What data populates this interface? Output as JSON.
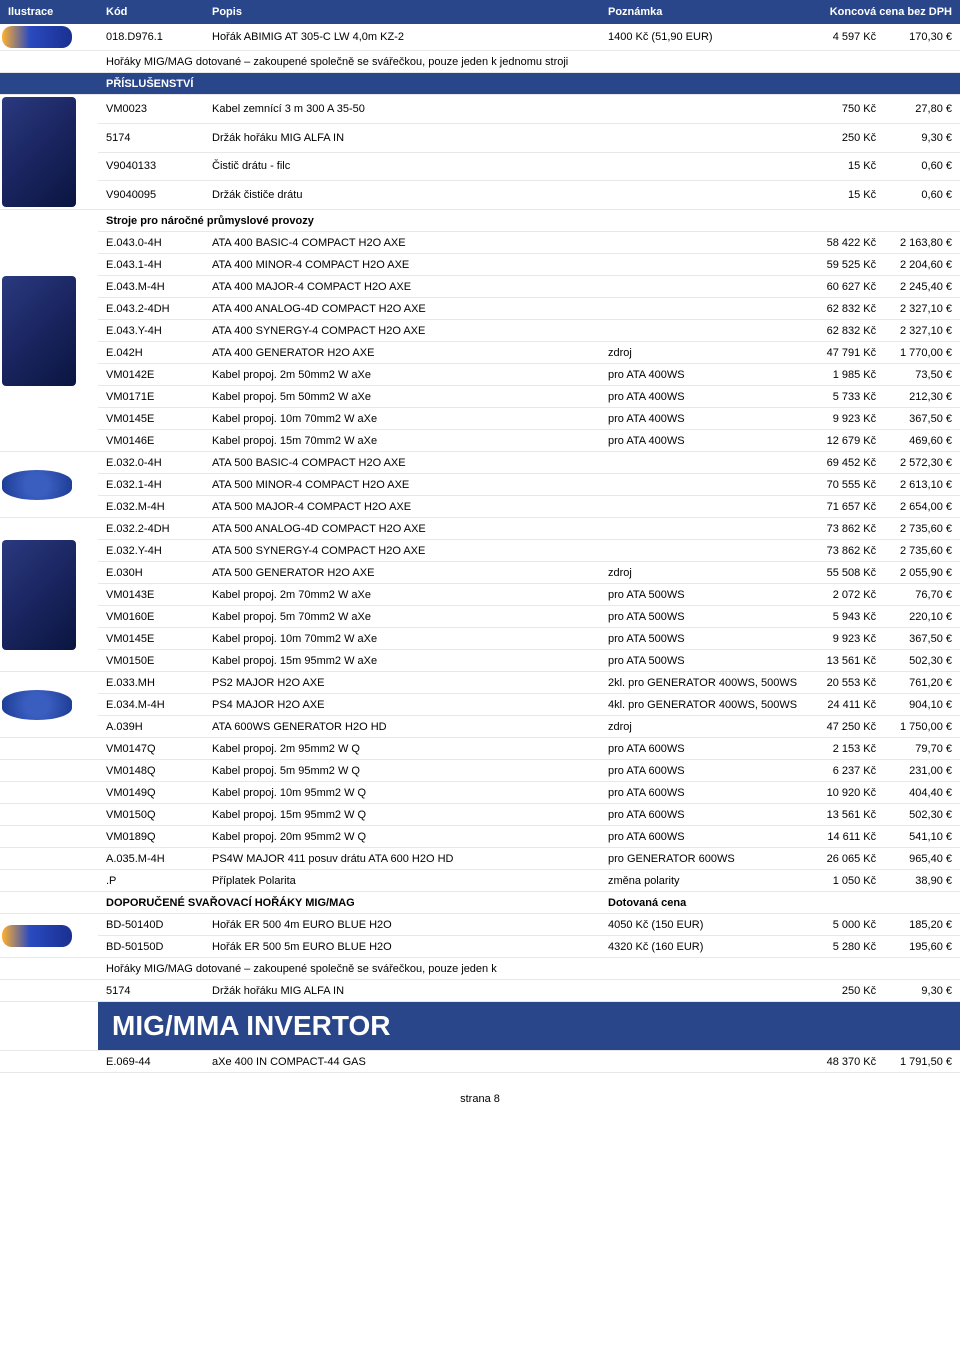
{
  "header": {
    "illus": "Ilustrace",
    "code": "Kód",
    "desc": "Popis",
    "note": "Poznámka",
    "price": "Koncová cena bez DPH"
  },
  "rows": [
    {
      "illus": "torch",
      "code": "018.D976.1",
      "desc": "Hořák ABIMIG AT 305-C LW 4,0m KZ-2",
      "note": "1400 Kč (51,90 EUR)",
      "kc": "4 597 Kč",
      "eur": "170,30 €"
    },
    {
      "type": "wide",
      "desc": "Hořáky MIG/MAG dotované – zakoupené společně se svářečkou, pouze jeden k jednomu stroji"
    },
    {
      "type": "darkheader",
      "desc": "PŘÍSLUŠENSTVÍ"
    },
    {
      "illus": "machine",
      "illusRowspan": 4,
      "code": "VM0023",
      "desc": "Kabel zemnící 3 m 300 A 35-50",
      "note": "",
      "kc": "750 Kč",
      "eur": "27,80 €"
    },
    {
      "code": "5174",
      "desc": "Držák hořáku MIG ALFA IN",
      "note": "",
      "kc": "250 Kč",
      "eur": "9,30 €"
    },
    {
      "code": "V9040133",
      "desc": "Čistič drátu - filc",
      "note": "",
      "kc": "15 Kč",
      "eur": "0,60 €"
    },
    {
      "code": "V9040095",
      "desc": "Držák čističe drátu",
      "note": "",
      "kc": "15 Kč",
      "eur": "0,60 €"
    },
    {
      "type": "boldheader",
      "illus": "machine",
      "illusRowspan": 11,
      "desc": "Stroje pro náročné průmyslové provozy"
    },
    {
      "code": "E.043.0-4H",
      "desc": "ATA 400 BASIC-4 COMPACT H2O AXE",
      "note": "",
      "kc": "58 422 Kč",
      "eur": "2 163,80 €"
    },
    {
      "code": "E.043.1-4H",
      "desc": "ATA 400 MINOR-4 COMPACT H2O AXE",
      "note": "",
      "kc": "59 525 Kč",
      "eur": "2 204,60 €"
    },
    {
      "code": "E.043.M-4H",
      "desc": "ATA 400 MAJOR-4 COMPACT H2O AXE",
      "note": "",
      "kc": "60 627 Kč",
      "eur": "2 245,40 €"
    },
    {
      "code": "E.043.2-4DH",
      "desc": "ATA 400 ANALOG-4D COMPACT H2O AXE",
      "note": "",
      "kc": "62 832 Kč",
      "eur": "2 327,10 €"
    },
    {
      "code": "E.043.Y-4H",
      "desc": "ATA 400 SYNERGY-4 COMPACT H2O AXE",
      "note": "",
      "kc": "62 832 Kč",
      "eur": "2 327,10 €"
    },
    {
      "code": "E.042H",
      "desc": "ATA 400 GENERATOR H2O AXE",
      "note": "zdroj",
      "kc": "47 791 Kč",
      "eur": "1 770,00 €"
    },
    {
      "code": "VM0142E",
      "desc": "Kabel propoj. 2m 50mm2 W aXe",
      "note": "pro ATA 400WS",
      "kc": "1 985 Kč",
      "eur": "73,50 €"
    },
    {
      "code": "VM0171E",
      "desc": "Kabel propoj. 5m 50mm2 W aXe",
      "note": "pro ATA 400WS",
      "kc": "5 733 Kč",
      "eur": "212,30 €"
    },
    {
      "code": "VM0145E",
      "desc": "Kabel propoj. 10m 70mm2 W aXe",
      "note": "pro ATA 400WS",
      "kc": "9 923 Kč",
      "eur": "367,50 €"
    },
    {
      "code": "VM0146E",
      "desc": "Kabel propoj. 15m 70mm2 W aXe",
      "note": "pro ATA 400WS",
      "kc": "12 679 Kč",
      "eur": "469,60 €"
    },
    {
      "illus": "cable",
      "illusRowspan": 3,
      "code": "E.032.0-4H",
      "desc": "ATA 500 BASIC-4 COMPACT H2O AXE",
      "note": "",
      "kc": "69 452 Kč",
      "eur": "2 572,30 €"
    },
    {
      "code": "E.032.1-4H",
      "desc": "ATA 500 MINOR-4 COMPACT H2O AXE",
      "note": "",
      "kc": "70 555 Kč",
      "eur": "2 613,10 €"
    },
    {
      "code": "E.032.M-4H",
      "desc": "ATA 500 MAJOR-4 COMPACT H2O AXE",
      "note": "",
      "kc": "71 657 Kč",
      "eur": "2 654,00 €"
    },
    {
      "illus": "machine",
      "illusRowspan": 7,
      "code": "E.032.2-4DH",
      "desc": "ATA 500 ANALOG-4D COMPACT H2O AXE",
      "note": "",
      "kc": "73 862 Kč",
      "eur": "2 735,60 €"
    },
    {
      "code": "E.032.Y-4H",
      "desc": "ATA 500 SYNERGY-4 COMPACT H2O AXE",
      "note": "",
      "kc": "73 862 Kč",
      "eur": "2 735,60 €"
    },
    {
      "code": "E.030H",
      "desc": "ATA 500 GENERATOR H2O AXE",
      "note": "zdroj",
      "kc": "55 508 Kč",
      "eur": "2 055,90 €"
    },
    {
      "code": "VM0143E",
      "desc": "Kabel propoj. 2m 70mm2 W aXe",
      "note": "pro ATA 500WS",
      "kc": "2 072 Kč",
      "eur": "76,70 €"
    },
    {
      "code": "VM0160E",
      "desc": "Kabel propoj. 5m 70mm2 W aXe",
      "note": "pro ATA 500WS",
      "kc": "5 943 Kč",
      "eur": "220,10 €"
    },
    {
      "code": "VM0145E",
      "desc": "Kabel propoj. 10m 70mm2 W aXe",
      "note": "pro ATA 500WS",
      "kc": "9 923 Kč",
      "eur": "367,50 €"
    },
    {
      "code": "VM0150E",
      "desc": "Kabel propoj. 15m 95mm2 W aXe",
      "note": "pro ATA 500WS",
      "kc": "13 561 Kč",
      "eur": "502,30 €"
    },
    {
      "illus": "cable",
      "illusRowspan": 3,
      "code": "E.033.MH",
      "desc": "PS2 MAJOR H2O AXE",
      "note": "2kl. pro GENERATOR 400WS, 500WS",
      "kc": "20 553 Kč",
      "eur": "761,20 €"
    },
    {
      "code": "E.034.M-4H",
      "desc": "PS4 MAJOR H2O AXE",
      "note": "4kl. pro GENERATOR 400WS, 500WS",
      "kc": "24 411 Kč",
      "eur": "904,10 €"
    },
    {
      "code": "A.039H",
      "desc": "ATA 600WS GENERATOR H2O HD",
      "note": "zdroj",
      "kc": "47 250 Kč",
      "eur": "1 750,00 €"
    },
    {
      "code": "VM0147Q",
      "desc": "Kabel propoj.  2m   95mm2  W Q",
      "note": "pro ATA 600WS",
      "kc": "2 153 Kč",
      "eur": "79,70 €"
    },
    {
      "code": "VM0148Q",
      "desc": "Kabel propoj.  5m   95mm2  W Q",
      "note": "pro ATA 600WS",
      "kc": "6 237 Kč",
      "eur": "231,00 €"
    },
    {
      "code": "VM0149Q",
      "desc": "Kabel propoj. 10m  95mm2  W Q",
      "note": "pro ATA 600WS",
      "kc": "10 920 Kč",
      "eur": "404,40 €"
    },
    {
      "code": "VM0150Q",
      "desc": "Kabel propoj. 15m  95mm2  W Q",
      "note": "pro ATA 600WS",
      "kc": "13 561 Kč",
      "eur": "502,30 €"
    },
    {
      "code": "VM0189Q",
      "desc": "Kabel propoj. 20m  95mm2  W Q",
      "note": "pro ATA 600WS",
      "kc": "14 611 Kč",
      "eur": "541,10 €"
    },
    {
      "code": "A.035.M-4H",
      "desc": "PS4W MAJOR 411 posuv drátu ATA 600 H2O HD",
      "note": "pro GENERATOR 600WS",
      "kc": "26 065 Kč",
      "eur": "965,40 €"
    },
    {
      "code": ".P",
      "desc": "Příplatek Polarita",
      "note": "změna polarity",
      "kc": "1 050 Kč",
      "eur": "38,90 €"
    },
    {
      "type": "boldheader2",
      "desc": "DOPORUČENÉ SVAŘOVACÍ HOŘÁKY MIG/MAG",
      "note": "Dotovaná cena"
    },
    {
      "illus": "torch",
      "illusRowspan": 2,
      "code": "BD-50140D",
      "desc": "Hořák ER 500 4m EURO BLUE H2O",
      "note": "4050 Kč (150 EUR)",
      "kc": "5 000 Kč",
      "eur": "185,20 €"
    },
    {
      "code": "BD-50150D",
      "desc": "Hořák ER 500 5m EURO BLUE H2O",
      "note": "4320 Kč (160 EUR)",
      "kc": "5 280 Kč",
      "eur": "195,60 €"
    },
    {
      "type": "wide",
      "desc": "Hořáky MIG/MAG dotované – zakoupené společně se svářečkou, pouze jeden k"
    },
    {
      "code": "5174",
      "desc": "Držák hořáku MIG ALFA IN",
      "note": "",
      "kc": "250 Kč",
      "eur": "9,30 €"
    },
    {
      "type": "bigheading",
      "desc": "MIG/MMA INVERTOR"
    },
    {
      "code": "E.069-44",
      "desc": "aXe 400 IN COMPACT-44 GAS",
      "note": "",
      "kc": "48 370 Kč",
      "eur": "1 791,50 €"
    }
  ],
  "footer": "strana 8"
}
